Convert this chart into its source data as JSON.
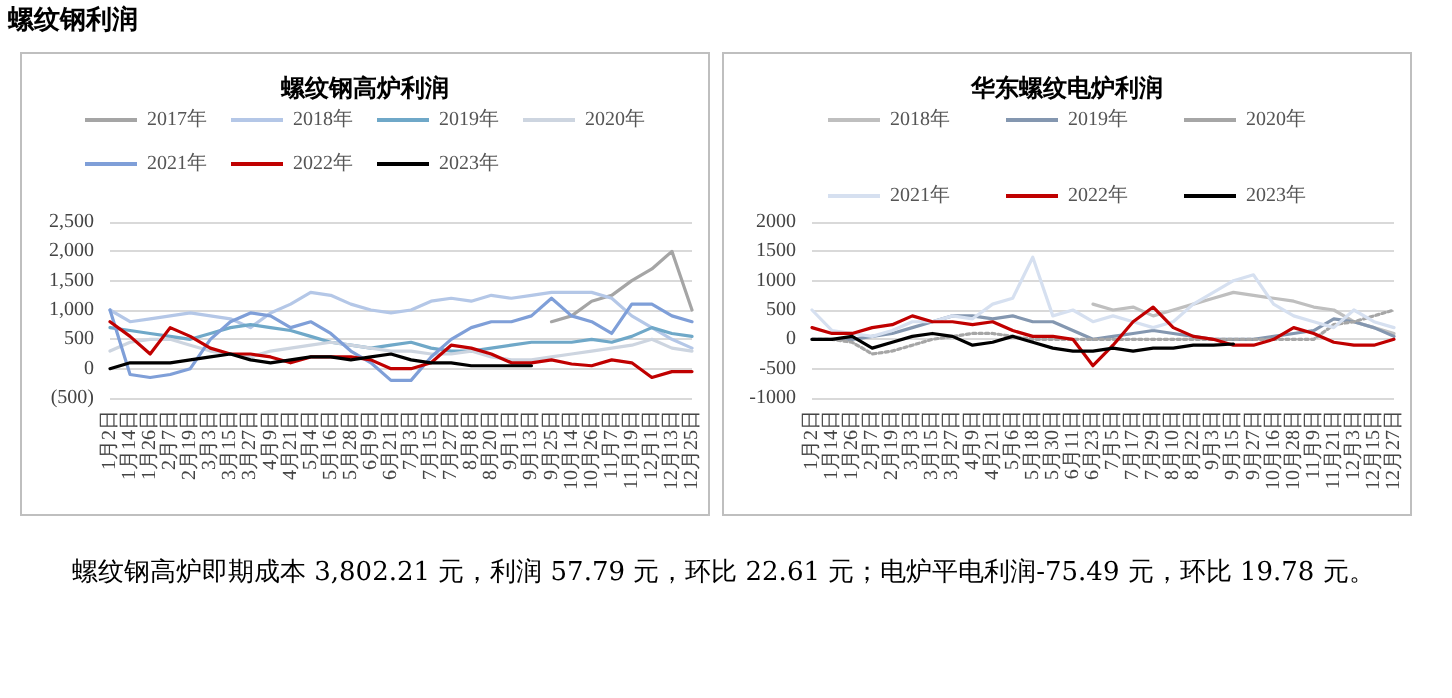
{
  "chart_data": [
    {
      "type": "line",
      "title": "螺纹钢高炉利润",
      "annotations": [
        "螺纹钢利润"
      ],
      "legend": "top",
      "grid": "y",
      "marker": "none",
      "categories": [
        "1月2日",
        "1月14日",
        "1月26日",
        "2月7日",
        "2月19日",
        "3月3日",
        "3月15日",
        "3月27日",
        "4月9日",
        "4月21日",
        "5月4日",
        "5月16日",
        "5月28日",
        "6月9日",
        "6月21日",
        "7月3日",
        "7月15日",
        "7月27日",
        "8月8日",
        "8月20日",
        "9月1日",
        "9月13日",
        "9月25日",
        "10月14日",
        "10月26日",
        "11月7日",
        "11月19日",
        "12月1日",
        "12月13日",
        "12月25日"
      ],
      "ylim": [
        -500,
        2500
      ],
      "yticks": [
        {
          "value": -500,
          "label": "(500)"
        },
        0,
        500,
        {
          "value": 1000,
          "label": "1,000"
        },
        {
          "value": 1500,
          "label": "1,500"
        },
        {
          "value": 2000,
          "label": "2,000"
        },
        {
          "value": 2500,
          "label": "2,500"
        }
      ],
      "series": [
        {
          "name": "2017年",
          "color": "#a5a5a5",
          "values": [
            null,
            null,
            null,
            null,
            null,
            null,
            null,
            null,
            null,
            null,
            null,
            null,
            null,
            null,
            null,
            null,
            null,
            null,
            null,
            null,
            null,
            null,
            800,
            900,
            1150,
            1250,
            1500,
            1700,
            2000,
            1000
          ]
        },
        {
          "name": "2018年",
          "color": "#b4c7e7",
          "values": [
            1000,
            800,
            850,
            900,
            950,
            900,
            850,
            700,
            950,
            1100,
            1300,
            1250,
            1100,
            1000,
            950,
            1000,
            1150,
            1200,
            1150,
            1250,
            1200,
            1250,
            1300,
            1300,
            1300,
            1200,
            900,
            700,
            500,
            350
          ]
        },
        {
          "name": "2019年",
          "color": "#6fa8c8",
          "values": [
            700,
            650,
            600,
            550,
            500,
            600,
            700,
            750,
            700,
            650,
            550,
            450,
            400,
            350,
            400,
            450,
            350,
            300,
            300,
            350,
            400,
            450,
            450,
            450,
            500,
            450,
            550,
            700,
            600,
            550
          ]
        },
        {
          "name": "2020年",
          "color": "#cdd5e0",
          "values": [
            300,
            450,
            500,
            500,
            400,
            300,
            250,
            200,
            300,
            350,
            400,
            450,
            400,
            350,
            300,
            300,
            250,
            250,
            300,
            200,
            150,
            150,
            200,
            250,
            300,
            350,
            400,
            500,
            350,
            300
          ]
        },
        {
          "name": "2021年",
          "color": "#7f9fd8",
          "values": [
            1000,
            -100,
            -150,
            -100,
            0,
            500,
            800,
            950,
            900,
            700,
            800,
            600,
            300,
            100,
            -200,
            -200,
            200,
            500,
            700,
            800,
            800,
            900,
            1200,
            900,
            800,
            600,
            1100,
            1100,
            900,
            800
          ]
        },
        {
          "name": "2022年",
          "color": "#c00000",
          "values": [
            800,
            550,
            250,
            700,
            550,
            350,
            250,
            250,
            200,
            100,
            200,
            200,
            200,
            150,
            0,
            0,
            100,
            400,
            350,
            250,
            100,
            100,
            150,
            80,
            50,
            150,
            100,
            -150,
            -50,
            -50
          ]
        },
        {
          "name": "2023年",
          "color": "#000000",
          "values": [
            0,
            100,
            100,
            100,
            150,
            200,
            250,
            150,
            100,
            150,
            200,
            200,
            150,
            200,
            250,
            150,
            100,
            100,
            50,
            50,
            50,
            50,
            null,
            null,
            null,
            null,
            null,
            null,
            null,
            null
          ]
        }
      ]
    },
    {
      "type": "line",
      "title": "华东螺纹电炉利润",
      "annotations": [
        "螺纹钢高炉即期成本 3,802.21 元，利润 57.79 元，环比 22.61 元；电炉平电利润-75.49  元，环比 19.78 元。"
      ],
      "legend": "top",
      "grid": "y",
      "marker": "none",
      "categories": [
        "1月2日",
        "1月14日",
        "1月26日",
        "2月7日",
        "2月19日",
        "3月3日",
        "3月15日",
        "3月27日",
        "4月9日",
        "4月21日",
        "5月6日",
        "5月18日",
        "5月30日",
        "6月11日",
        "6月23日",
        "7月5日",
        "7月17日",
        "7月29日",
        "8月10日",
        "8月22日",
        "9月3日",
        "9月15日",
        "9月27日",
        "10月16日",
        "10月28日",
        "11月9日",
        "11月21日",
        "12月3日",
        "12月15日",
        "12月27日"
      ],
      "ylim": [
        -1000,
        2000
      ],
      "yticks": [
        -1000,
        -500,
        0,
        500,
        1000,
        1500,
        2000
      ],
      "series": [
        {
          "name": "2018年",
          "color": "#bfbfbf",
          "values": [
            null,
            null,
            null,
            null,
            null,
            null,
            null,
            null,
            null,
            null,
            null,
            null,
            null,
            null,
            600,
            500,
            550,
            400,
            500,
            600,
            700,
            800,
            750,
            700,
            650,
            550,
            500,
            300,
            200,
            100
          ]
        },
        {
          "name": "2019年",
          "color": "#8497b0",
          "values": [
            0,
            0,
            0,
            50,
            100,
            200,
            300,
            400,
            400,
            350,
            400,
            300,
            300,
            150,
            0,
            50,
            100,
            150,
            100,
            50,
            0,
            0,
            0,
            50,
            100,
            150,
            350,
            300,
            200,
            50
          ]
        },
        {
          "name": "2020年",
          "color": "#a6a6a6",
          "line_style": "dotted",
          "values": [
            0,
            0,
            -50,
            -250,
            -200,
            -100,
            0,
            50,
            100,
            100,
            50,
            0,
            0,
            0,
            0,
            0,
            0,
            0,
            0,
            0,
            0,
            0,
            0,
            0,
            0,
            0,
            250,
            300,
            400,
            500
          ]
        },
        {
          "name": "2021年",
          "color": "#d6e0f0",
          "values": [
            500,
            150,
            100,
            50,
            150,
            300,
            300,
            400,
            350,
            600,
            700,
            1400,
            400,
            500,
            300,
            400,
            300,
            200,
            300,
            600,
            800,
            1000,
            1100,
            600,
            400,
            300,
            200,
            500,
            300,
            200
          ]
        },
        {
          "name": "2022年",
          "color": "#c00000",
          "values": [
            200,
            100,
            100,
            200,
            250,
            400,
            300,
            300,
            250,
            300,
            150,
            50,
            50,
            0,
            -450,
            -100,
            300,
            550,
            200,
            50,
            0,
            -100,
            -100,
            0,
            200,
            100,
            -50,
            -100,
            -100,
            0
          ]
        },
        {
          "name": "2023年",
          "color": "#000000",
          "values": [
            0,
            0,
            50,
            -150,
            -50,
            50,
            100,
            50,
            -100,
            -50,
            50,
            -50,
            -150,
            -200,
            -200,
            -150,
            -200,
            -150,
            -150,
            -100,
            -100,
            -80,
            null,
            null,
            null,
            null,
            null,
            null,
            null,
            null
          ]
        }
      ]
    }
  ]
}
